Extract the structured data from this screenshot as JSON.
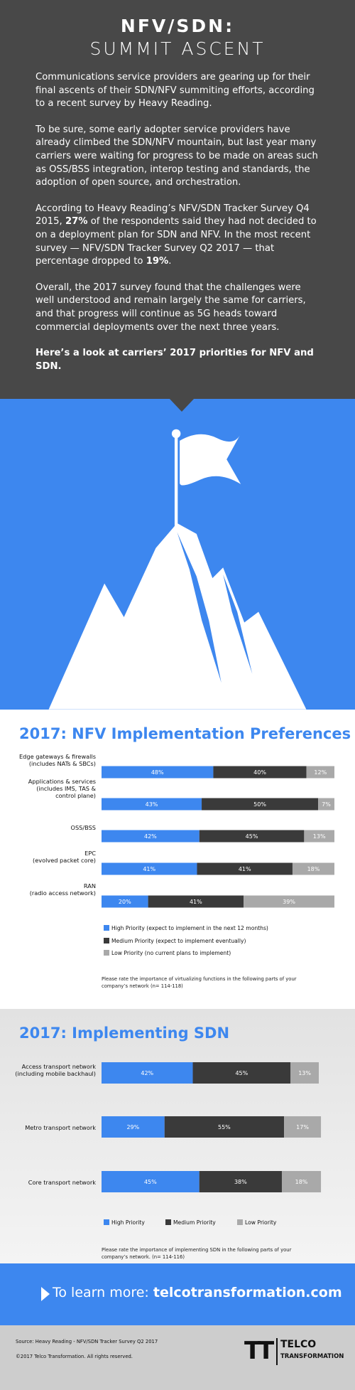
{
  "header": {
    "title": "NFV/SDN:",
    "subtitle": "SUMMIT ASCENT",
    "paragraphs": [
      [
        {
          "text": "Communications service providers are gearing up for their final ascents of their SDN/NFV summiting efforts, according to a recent survey by Heavy Reading."
        }
      ],
      [
        {
          "text": "To be sure, some early adopter service providers have already climbed the SDN/NFV mountain, but last year many carriers were waiting for progress to be made on areas such as OSS/BSS integration, interop testing and standards, the adoption of open source, and orchestration."
        }
      ],
      [
        {
          "text": "According to Heavy Reading’s NFV/SDN Tracker Survey Q4 2015, "
        },
        {
          "text": "27%",
          "bold": true
        },
        {
          "text": " of the respondents said they had not decided to on a deployment plan for SDN and NFV. In the most recent survey — NFV/SDN Tracker Survey Q2 2017 — that percentage dropped to "
        },
        {
          "text": "19%",
          "bold": true
        },
        {
          "text": "."
        }
      ],
      [
        {
          "text": "Overall, the 2017 survey found that the challenges were well understood and remain largely the same for carriers, and that progress will continue as 5G heads toward commercial deployments over the next three years."
        }
      ],
      [
        {
          "text": "Here’s a look at carriers’ 2017 priorities for NFV and SDN.",
          "bold": true
        }
      ]
    ]
  },
  "chart_data": [
    {
      "type": "stacked_bar_h",
      "title": "2017: NFV Implementation Preferences",
      "categories": [
        "Edge gateways & firewalls\n(includes NATs & SBCs)",
        "Applications & services\n(includes IMS, TAS &\ncontrol plane)",
        "OSS/BSS",
        "EPC\n(evolved packet core)",
        "RAN\n(radio access network)"
      ],
      "series": [
        {
          "name": "High Priority (expect to implement in the next 12 months)",
          "color": "#3d87ef",
          "values": [
            48,
            43,
            42,
            41,
            20
          ],
          "value_labels": [
            "48%",
            "43%",
            "42%",
            "41%",
            "20%"
          ]
        },
        {
          "name": "Medium Priority (expect to implement eventually)",
          "color": "#3a3a3a",
          "values": [
            40,
            50,
            45,
            41,
            41
          ],
          "value_labels": [
            "40%",
            "50%",
            "45%",
            "41%",
            "41%"
          ]
        },
        {
          "name": "Low Priority (no current plans to implement)",
          "color": "#a9a9a9",
          "values": [
            12,
            7,
            13,
            18,
            39
          ],
          "value_labels": [
            "12%",
            "7%",
            "13%",
            "18%",
            "39%"
          ]
        }
      ],
      "xlim": [
        0,
        100
      ],
      "legend": "vertical",
      "note": "Please rate the importance of virtualizing functions in the following parts of your company’s network (n= 114-118)"
    },
    {
      "type": "stacked_bar_h",
      "title": "2017: Implementing SDN",
      "categories": [
        "Access transport network\n(including mobile backhaul)",
        "Metro transport network",
        "Core transport network"
      ],
      "series": [
        {
          "name": "High Priority",
          "color": "#3d87ef",
          "values": [
            42,
            29,
            45
          ],
          "value_labels": [
            "42%",
            "29%",
            "45%"
          ]
        },
        {
          "name": "Medium Priority",
          "color": "#3a3a3a",
          "values": [
            45,
            55,
            38
          ],
          "value_labels": [
            "45%",
            "55%",
            "38%"
          ]
        },
        {
          "name": "Low Priority",
          "color": "#a9a9a9",
          "values": [
            13,
            17,
            18
          ],
          "value_labels": [
            "13%",
            "17%",
            "18%"
          ]
        }
      ],
      "xlim": [
        0,
        100
      ],
      "legend": "horizontal",
      "note": "Please rate the importance of implementing SDN in the following parts of your company’s network. (n= 114-116)"
    }
  ],
  "cta": {
    "text": "To learn more:",
    "link": "telcotransformation.com"
  },
  "footer": {
    "source": "Source: Heavy Reading - NFV/SDN Tracker Survey Q2 2017",
    "copyright": "©2017 Telco Transformation. All rights reserved.",
    "logo_mark": "TT",
    "logo_line1": "TELCO",
    "logo_line2": "TRANSFORMATION"
  }
}
